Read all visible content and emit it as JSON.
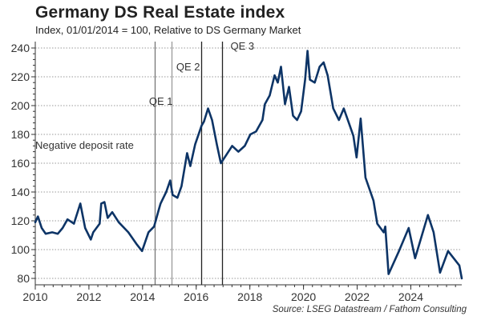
{
  "header": {
    "title": "Germany DS Real Estate index",
    "subtitle": "Index, 01/01/2014 = 100, Relative to DS Germany Market"
  },
  "footer": {
    "source": "Source: LSEG Datastream / Fathom Consulting"
  },
  "chart_data": {
    "type": "line",
    "title": "Germany DS Real Estate index",
    "subtitle": "Index, 01/01/2014 = 100, Relative to DS Germany Market",
    "xlabel": "",
    "ylabel": "",
    "xlim": [
      2010,
      2025.9
    ],
    "ylim": [
      80,
      240
    ],
    "x_ticks": [
      2010,
      2012,
      2014,
      2016,
      2018,
      2020,
      2022,
      2024
    ],
    "x_tick_labels": [
      "2010",
      "2012",
      "2014",
      "2016",
      "2018",
      "2020",
      "2022",
      "2024"
    ],
    "y_ticks": [
      80,
      100,
      120,
      140,
      160,
      180,
      200,
      220,
      240
    ],
    "y_tick_labels": [
      "80",
      "100",
      "120",
      "140",
      "160",
      "180",
      "200",
      "220",
      "240"
    ],
    "grid": "horizontal-dotted",
    "line_color": "#0d3466",
    "series": [
      {
        "name": "Germany DS Real Estate index",
        "points": [
          [
            2010.0,
            119
          ],
          [
            2010.1,
            123
          ],
          [
            2010.24,
            115
          ],
          [
            2010.39,
            111
          ],
          [
            2010.63,
            112
          ],
          [
            2010.84,
            111
          ],
          [
            2011.02,
            115
          ],
          [
            2011.2,
            121
          ],
          [
            2011.44,
            118
          ],
          [
            2011.68,
            132
          ],
          [
            2011.86,
            115
          ],
          [
            2012.07,
            107
          ],
          [
            2012.16,
            112
          ],
          [
            2012.4,
            118
          ],
          [
            2012.46,
            132
          ],
          [
            2012.58,
            133
          ],
          [
            2012.7,
            122
          ],
          [
            2012.87,
            126
          ],
          [
            2013.11,
            119
          ],
          [
            2013.47,
            112
          ],
          [
            2013.77,
            104
          ],
          [
            2013.98,
            99
          ],
          [
            2014.22,
            112
          ],
          [
            2014.43,
            116
          ],
          [
            2014.61,
            128
          ],
          [
            2014.67,
            132
          ],
          [
            2014.88,
            140
          ],
          [
            2015.03,
            148
          ],
          [
            2015.12,
            138
          ],
          [
            2015.3,
            136
          ],
          [
            2015.45,
            144
          ],
          [
            2015.66,
            167
          ],
          [
            2015.78,
            158
          ],
          [
            2015.96,
            173
          ],
          [
            2016.2,
            186
          ],
          [
            2016.29,
            189
          ],
          [
            2016.44,
            198
          ],
          [
            2016.59,
            190
          ],
          [
            2016.77,
            173
          ],
          [
            2016.92,
            160
          ],
          [
            2017.13,
            166
          ],
          [
            2017.34,
            172
          ],
          [
            2017.57,
            168
          ],
          [
            2017.81,
            172
          ],
          [
            2018.02,
            180
          ],
          [
            2018.23,
            182
          ],
          [
            2018.47,
            190
          ],
          [
            2018.56,
            201
          ],
          [
            2018.74,
            207
          ],
          [
            2018.92,
            221
          ],
          [
            2019.04,
            216
          ],
          [
            2019.16,
            227
          ],
          [
            2019.31,
            201
          ],
          [
            2019.46,
            213
          ],
          [
            2019.61,
            193
          ],
          [
            2019.76,
            190
          ],
          [
            2019.91,
            196
          ],
          [
            2020.06,
            218
          ],
          [
            2020.15,
            238
          ],
          [
            2020.24,
            218
          ],
          [
            2020.42,
            216
          ],
          [
            2020.6,
            227
          ],
          [
            2020.75,
            230
          ],
          [
            2020.9,
            221
          ],
          [
            2021.11,
            198
          ],
          [
            2021.32,
            190
          ],
          [
            2021.5,
            198
          ],
          [
            2021.71,
            187
          ],
          [
            2021.86,
            179
          ],
          [
            2021.98,
            164
          ],
          [
            2022.13,
            191
          ],
          [
            2022.31,
            150
          ],
          [
            2022.61,
            134
          ],
          [
            2022.75,
            118
          ],
          [
            2022.99,
            112
          ],
          [
            2023.05,
            116
          ],
          [
            2023.17,
            83
          ],
          [
            2023.56,
            99
          ],
          [
            2023.92,
            115
          ],
          [
            2024.16,
            94
          ],
          [
            2024.64,
            124
          ],
          [
            2024.85,
            112
          ],
          [
            2025.09,
            84
          ],
          [
            2025.39,
            99
          ],
          [
            2025.81,
            89
          ],
          [
            2025.9,
            80
          ]
        ]
      }
    ],
    "annotations": [
      {
        "label": "Negative deposit rate",
        "x": 2014.44,
        "line_color": "#777777"
      },
      {
        "label": "QE 1",
        "x": 2015.07,
        "line_color": "#999999"
      },
      {
        "label": "QE 2",
        "x": 2016.2,
        "line_color": "#222222"
      },
      {
        "label": "QE 3",
        "x": 2016.95,
        "line_color": "#222222"
      }
    ]
  }
}
